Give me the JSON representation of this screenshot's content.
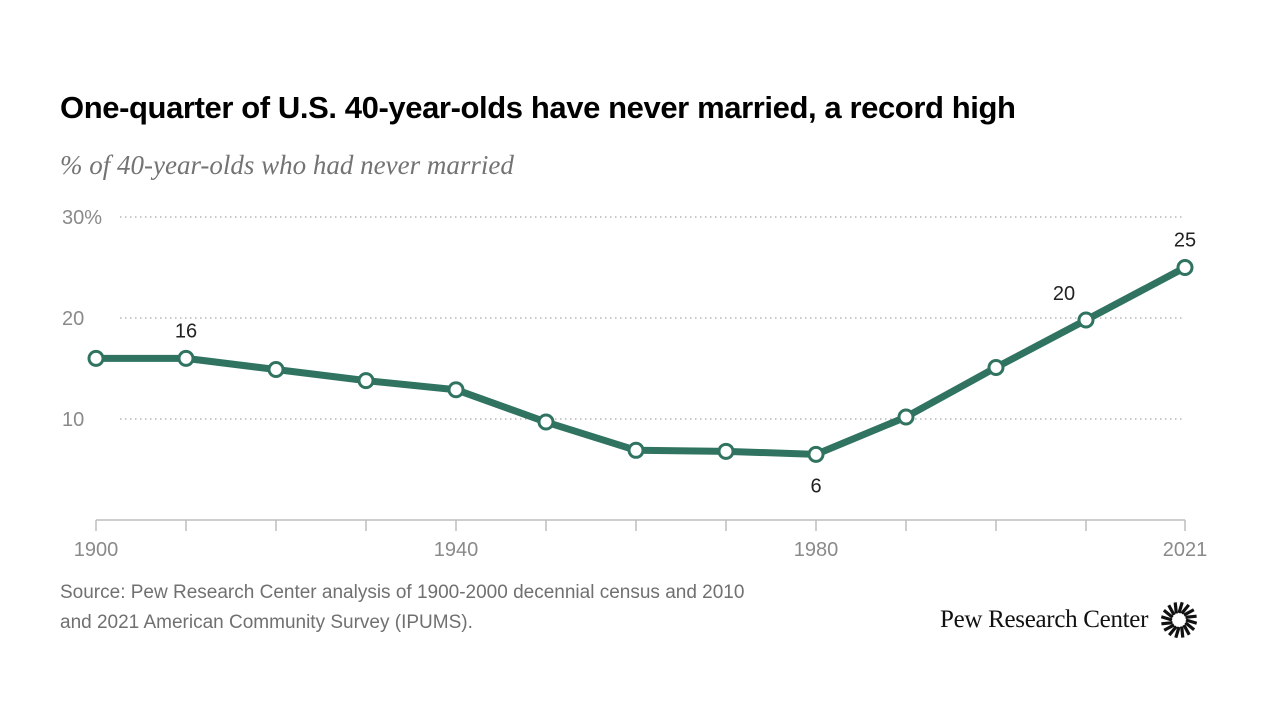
{
  "header": {
    "title": "One-quarter of U.S. 40-year-olds have never married, a record high",
    "subtitle": "% of 40-year-olds who had never married"
  },
  "chart_data": {
    "type": "line",
    "title": "One-quarter of U.S. 40-year-olds have never married, a record high",
    "subtitle": "% of 40-year-olds who had never married",
    "xlabel": "",
    "ylabel": "",
    "x": [
      1900,
      1910,
      1920,
      1930,
      1940,
      1950,
      1960,
      1970,
      1980,
      1990,
      2000,
      2010,
      2021
    ],
    "series": [
      {
        "values": [
          16,
          16,
          14.9,
          13.8,
          12.9,
          9.7,
          6.9,
          6.8,
          6.5,
          10.2,
          15.1,
          19.8,
          25
        ]
      }
    ],
    "ylim": [
      0,
      30
    ],
    "y_ticks": [
      {
        "value": 10,
        "label": "10"
      },
      {
        "value": 20,
        "label": "20"
      },
      {
        "value": 30,
        "label": "30%"
      }
    ],
    "x_tick_values": [
      1900,
      1910,
      1920,
      1930,
      1940,
      1950,
      1960,
      1970,
      1980,
      1990,
      2000,
      2010,
      2021
    ],
    "x_labels": [
      {
        "value": 1900,
        "label": "1900"
      },
      {
        "value": 1940,
        "label": "1940"
      },
      {
        "value": 1980,
        "label": "1980"
      },
      {
        "value": 2021,
        "label": "2021"
      }
    ],
    "data_labels": [
      {
        "x": 1910,
        "label": "16",
        "position": "above"
      },
      {
        "x": 1980,
        "label": "6",
        "position": "below"
      },
      {
        "x": 2010,
        "label": "20",
        "position": "above-left"
      },
      {
        "x": 2021,
        "label": "25",
        "position": "above"
      }
    ],
    "grid": true,
    "legend": "none",
    "colors": {
      "line": "#2f7360",
      "marker_fill": "#ffffff",
      "grid": "#a8a8a8",
      "axis": "#bdbdbd",
      "tick_text": "#8a8a8a"
    }
  },
  "footer": {
    "source": "Source: Pew Research Center analysis of 1900-2000 decennial census and 2010 and 2021 American Community Survey (IPUMS).",
    "logo_text": "Pew Research Center",
    "logo_icon": "pew-sunburst-icon"
  }
}
